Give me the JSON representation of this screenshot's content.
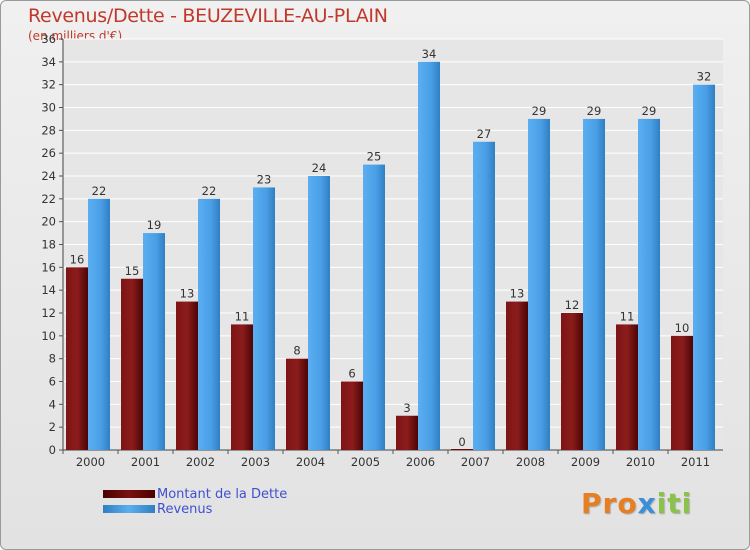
{
  "header": {
    "title": "Revenus/Dette - BEUZEVILLE-AU-PLAIN",
    "subtitle": "(en milliers d'€)"
  },
  "legend": {
    "debt_label": "Montant de la Dette",
    "revenue_label": "Revenus"
  },
  "logo": {
    "text": "Proxiti"
  },
  "colors": {
    "debt": "#6b0a0a",
    "revenue": "#4a9ee6",
    "title": "#c0392b",
    "legend_text": "#4050d0"
  },
  "chart_data": {
    "type": "bar",
    "title": "Revenus/Dette - BEUZEVILLE-AU-PLAIN",
    "ylabel": "(en milliers d'€)",
    "xlabel": "",
    "ylim": [
      0,
      36
    ],
    "yticks": [
      0,
      2,
      4,
      6,
      8,
      10,
      12,
      14,
      16,
      18,
      20,
      22,
      24,
      26,
      28,
      30,
      32,
      34,
      36
    ],
    "grid": true,
    "legend_position": "bottom-left",
    "categories": [
      "2000",
      "2001",
      "2002",
      "2003",
      "2004",
      "2005",
      "2006",
      "2007",
      "2008",
      "2009",
      "2010",
      "2011"
    ],
    "series": [
      {
        "name": "Montant de la Dette",
        "values": [
          16,
          15,
          13,
          11,
          8,
          6,
          3,
          0,
          13,
          12,
          11,
          10
        ]
      },
      {
        "name": "Revenus",
        "values": [
          22,
          19,
          22,
          23,
          24,
          25,
          34,
          27,
          29,
          29,
          29,
          32
        ]
      }
    ]
  }
}
